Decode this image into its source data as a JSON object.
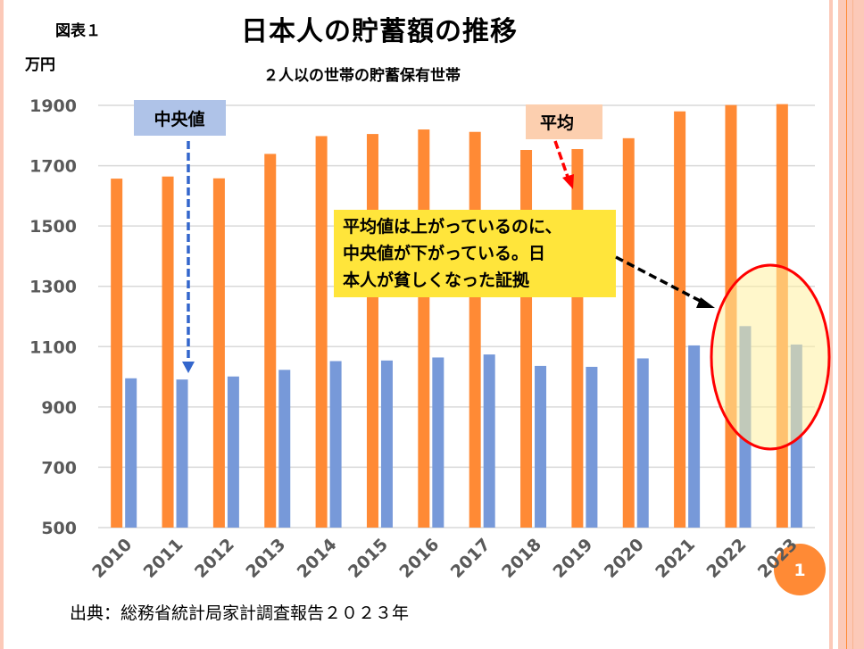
{
  "figure_label": "図表１",
  "title": "日本人の貯蓄額の推移",
  "unit": "万円",
  "subtitle": "２人以の世帯の貯蓄保有世帯",
  "source": "出典：総務省統計局家計調査報告２０２３年",
  "page_number": "1",
  "annotations": {
    "median_label": "中央値",
    "mean_label": "平均",
    "callout_lines": [
      "平均値は上がっているのに、",
      "中央値が下がっている。日",
      "本人が貧しくなった証拠"
    ]
  },
  "colors": {
    "mean": "#FF8A35",
    "median": "#7799D9",
    "median_label_bg": "#AFC3E8",
    "mean_label_bg": "#FCCFAF",
    "callout_bg": "#FFE53B",
    "highlight_stroke": "#FF0000",
    "highlight_fill": "#FFF5B0",
    "page_badge": "#FF8A35",
    "stripe": "#FCC9B8"
  },
  "chart_data": {
    "type": "bar",
    "title": "日本人の貯蓄額の推移",
    "subtitle": "２人以の世帯の貯蓄保有世帯",
    "ylabel": "万円",
    "xlabel": "",
    "ylim": [
      500,
      1900
    ],
    "yticks": [
      "500",
      "700",
      "900",
      "1100",
      "1300",
      "1500",
      "1700",
      "1900"
    ],
    "grid": true,
    "categories": [
      "2010",
      "2011",
      "2012",
      "2013",
      "2014",
      "2015",
      "2016",
      "2017",
      "2018",
      "2019",
      "2020",
      "2021",
      "2022",
      "2023"
    ],
    "series": [
      {
        "name": "平均",
        "values": [
          1657,
          1664,
          1658,
          1739,
          1798,
          1805,
          1820,
          1812,
          1752,
          1755,
          1791,
          1880,
          1901,
          1904
        ]
      },
      {
        "name": "中央値",
        "values": [
          995,
          991,
          1001,
          1023,
          1052,
          1054,
          1064,
          1074,
          1036,
          1033,
          1061,
          1104,
          1168,
          1107
        ]
      }
    ]
  }
}
